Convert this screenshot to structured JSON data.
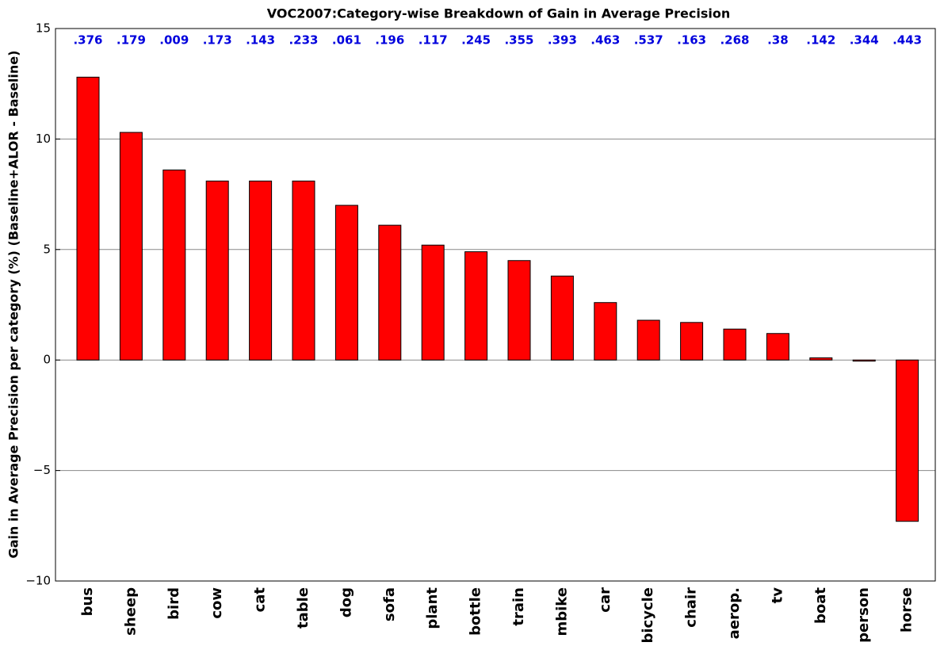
{
  "chart_data": {
    "type": "bar",
    "title": "VOC2007:Category-wise Breakdown of Gain in Average Precision",
    "y_label": "Gain in Average Precision per category (%) (Baseline+ALOR - Baseline)",
    "categories": [
      "bus",
      "sheep",
      "bird",
      "cow",
      "cat",
      "table",
      "dog",
      "sofa",
      "plant",
      "bottle",
      "train",
      "mbike",
      "car",
      "bicycle",
      "chair",
      "aerop.",
      "tv",
      "boat",
      "person",
      "horse"
    ],
    "values": [
      12.8,
      10.3,
      8.6,
      8.1,
      8.1,
      8.1,
      7.0,
      6.1,
      5.2,
      4.9,
      4.5,
      3.8,
      2.6,
      1.8,
      1.7,
      1.4,
      1.2,
      0.1,
      -0.05,
      -7.3
    ],
    "annotations": [
      ".376",
      ".179",
      ".009",
      ".173",
      ".143",
      ".233",
      ".061",
      ".196",
      ".117",
      ".245",
      ".355",
      ".393",
      ".463",
      ".537",
      ".163",
      ".268",
      ".38",
      ".142",
      ".344",
      ".443"
    ],
    "color": "#ff0000",
    "ylim": [
      -10,
      15
    ],
    "yticks": [
      {
        "value": -10,
        "label": "−10"
      },
      {
        "value": -5,
        "label": "−5"
      },
      0,
      5,
      10,
      15
    ],
    "grid": true
  }
}
